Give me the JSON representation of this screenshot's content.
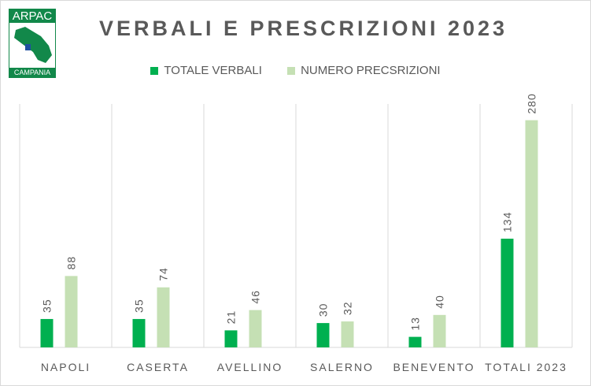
{
  "logo": {
    "top_text": "ARPAC",
    "bottom_text": "CAMPANIA"
  },
  "chart_data": {
    "type": "bar",
    "title": "VERBALI E PRESCRIZIONI 2023",
    "categories": [
      "NAPOLI",
      "CASERTA",
      "AVELLINO",
      "SALERNO",
      "BENEVENTO",
      "TOTALI 2023"
    ],
    "series": [
      {
        "name": "TOTALE VERBALI",
        "color": "#00b050",
        "values": [
          35,
          35,
          21,
          30,
          13,
          134
        ]
      },
      {
        "name": "NUMERO PRECSRIZIONI",
        "color": "#c5e0b4",
        "values": [
          88,
          74,
          46,
          32,
          40,
          280
        ]
      }
    ],
    "ylim": [
      0,
      300
    ],
    "grid": false,
    "legend": "top",
    "data_labels": true
  }
}
